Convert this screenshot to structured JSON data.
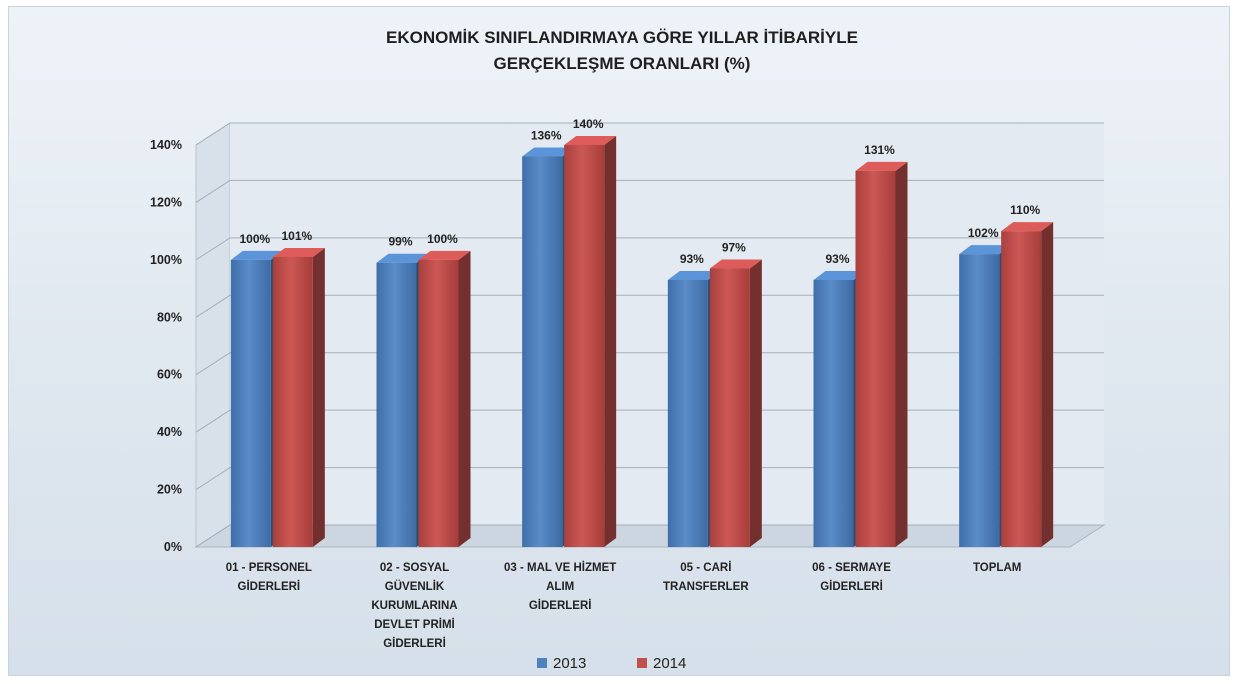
{
  "chart_data": {
    "type": "bar",
    "title": [
      "EKONOMİK SINIFLANDIRMAYA GÖRE YILLAR İTİBARİYLE",
      "GERÇEKLEŞME ORANLARI (%)"
    ],
    "categories": [
      [
        "01 - PERSONEL",
        "GİDERLERİ"
      ],
      [
        "02 - SOSYAL",
        "GÜVENLİK",
        "KURUMLARINA",
        "DEVLET PRİMİ",
        "GİDERLERİ"
      ],
      [
        "03 - MAL VE HİZMET",
        "ALIM",
        "GİDERLERİ"
      ],
      [
        "05 - CARİ",
        "TRANSFERLER"
      ],
      [
        "06 - SERMAYE",
        "GİDERLERİ"
      ],
      [
        "TOPLAM"
      ]
    ],
    "series": [
      {
        "name": "2013",
        "color": "#4f81bd",
        "values": [
          100,
          99,
          136,
          93,
          93,
          102
        ],
        "labels": [
          "100%",
          "99%",
          "136%",
          "93%",
          "93%",
          "102%"
        ]
      },
      {
        "name": "2014",
        "color": "#c0504d",
        "values": [
          101,
          100,
          140,
          97,
          131,
          110
        ],
        "labels": [
          "101%",
          "100%",
          "140%",
          "97%",
          "131%",
          "110%"
        ]
      }
    ],
    "ylim": [
      0,
      140
    ],
    "yticks": [
      "0%",
      "20%",
      "40%",
      "60%",
      "80%",
      "100%",
      "120%",
      "140%"
    ],
    "grid": true,
    "legend_position": "bottom-center",
    "style": "3d-clustered-column"
  }
}
